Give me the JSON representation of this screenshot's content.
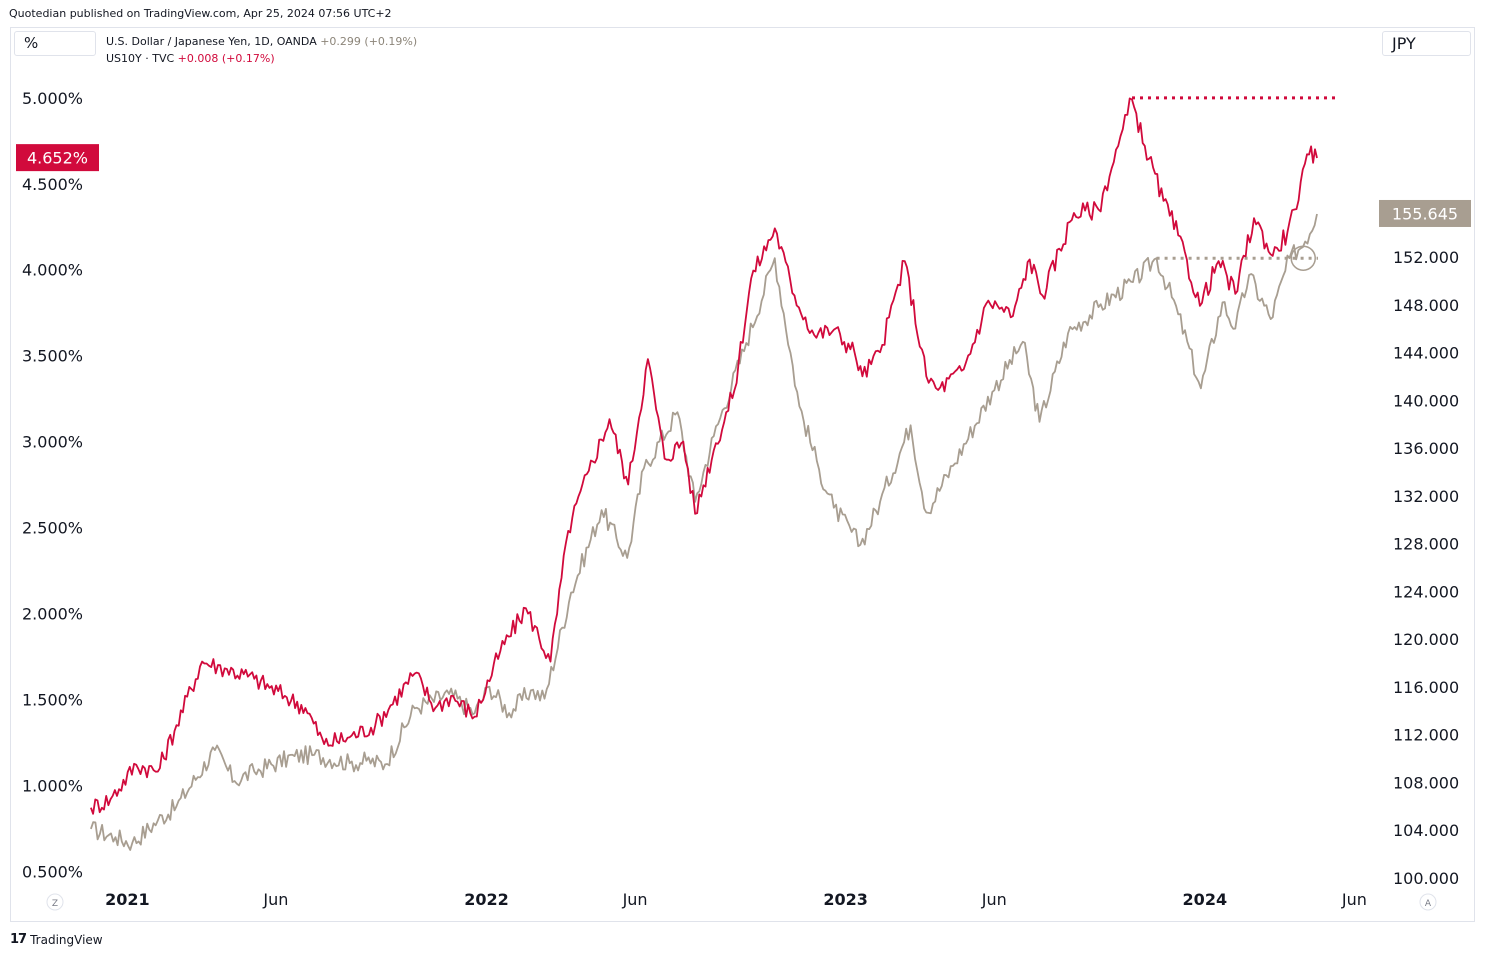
{
  "header": {
    "published_text": "Quotedian published on TradingView.com, Apr 25, 2024 07:56 UTC+2"
  },
  "left_unit_label": "%",
  "right_currency_label": "JPY",
  "legend": [
    {
      "name": "U.S. Dollar / Japanese Yen, 1D, OANDA",
      "change": "+0.299 (+0.19%)",
      "color": "#a89e91"
    },
    {
      "name": "US10Y · TVC",
      "change": "+0.008 (+0.17%)",
      "color": "#d10a3c"
    }
  ],
  "footer": {
    "brand_glyph": "17",
    "brand_text": "TradingView"
  },
  "corner_buttons": {
    "left": "Z",
    "right": "A"
  },
  "chart_data": {
    "type": "line",
    "left_axis": {
      "ylim": [
        0.42,
        5.22
      ],
      "ticks": [
        0.5,
        1.0,
        1.5,
        2.0,
        2.5,
        3.0,
        3.5,
        4.0,
        4.5,
        5.0
      ],
      "tick_labels": [
        "0.500%",
        "1.000%",
        "1.500%",
        "2.000%",
        "2.500%",
        "3.000%",
        "3.500%",
        "4.000%",
        "4.500%",
        "5.000%"
      ]
    },
    "right_axis": {
      "ylim": [
        99.4,
        168.5
      ],
      "ticks": [
        100,
        104,
        108,
        112,
        116,
        120,
        124,
        128,
        132,
        136,
        140,
        144,
        148,
        152
      ],
      "tick_labels": [
        "100.000",
        "104.000",
        "108.000",
        "112.000",
        "116.000",
        "120.000",
        "124.000",
        "128.000",
        "132.000",
        "136.000",
        "140.000",
        "144.000",
        "148.000",
        "152.000"
      ]
    },
    "x_axis": {
      "range": [
        "2020-11-20",
        "2024-06-25"
      ],
      "ticks": [
        {
          "date": "2021-01-01",
          "label": "2021",
          "bold": true
        },
        {
          "date": "2021-06-01",
          "label": "Jun",
          "bold": false
        },
        {
          "date": "2022-01-01",
          "label": "2022",
          "bold": true
        },
        {
          "date": "2022-06-01",
          "label": "Jun",
          "bold": false
        },
        {
          "date": "2023-01-01",
          "label": "2023",
          "bold": true
        },
        {
          "date": "2023-06-01",
          "label": "Jun",
          "bold": false
        },
        {
          "date": "2024-01-01",
          "label": "2024",
          "bold": true
        },
        {
          "date": "2024-06-01",
          "label": "Jun",
          "bold": false
        }
      ]
    },
    "series": [
      {
        "name": "US10Y · TVC",
        "axis": "left",
        "color": "#d10a3c",
        "last_value": 4.652,
        "last_label": "4.652%",
        "points": [
          [
            "2020-11-25",
            0.87
          ],
          [
            "2020-12-15",
            0.92
          ],
          [
            "2021-01-10",
            1.12
          ],
          [
            "2021-02-01",
            1.08
          ],
          [
            "2021-02-20",
            1.35
          ],
          [
            "2021-03-18",
            1.72
          ],
          [
            "2021-04-10",
            1.68
          ],
          [
            "2021-05-10",
            1.62
          ],
          [
            "2021-06-10",
            1.52
          ],
          [
            "2021-07-01",
            1.45
          ],
          [
            "2021-07-20",
            1.24
          ],
          [
            "2021-08-15",
            1.28
          ],
          [
            "2021-09-10",
            1.35
          ],
          [
            "2021-10-20",
            1.65
          ],
          [
            "2021-11-10",
            1.45
          ],
          [
            "2021-11-26",
            1.52
          ],
          [
            "2021-12-20",
            1.4
          ],
          [
            "2022-01-15",
            1.78
          ],
          [
            "2022-02-10",
            2.03
          ],
          [
            "2022-03-07",
            1.72
          ],
          [
            "2022-03-25",
            2.48
          ],
          [
            "2022-04-15",
            2.83
          ],
          [
            "2022-05-06",
            3.13
          ],
          [
            "2022-05-25",
            2.75
          ],
          [
            "2022-06-14",
            3.48
          ],
          [
            "2022-07-01",
            2.9
          ],
          [
            "2022-07-20",
            3.0
          ],
          [
            "2022-08-01",
            2.58
          ],
          [
            "2022-08-20",
            2.95
          ],
          [
            "2022-09-10",
            3.3
          ],
          [
            "2022-09-27",
            3.95
          ],
          [
            "2022-10-21",
            4.24
          ],
          [
            "2022-11-10",
            3.85
          ],
          [
            "2022-11-30",
            3.62
          ],
          [
            "2022-12-20",
            3.65
          ],
          [
            "2023-01-10",
            3.52
          ],
          [
            "2023-01-18",
            3.38
          ],
          [
            "2023-02-05",
            3.52
          ],
          [
            "2023-03-02",
            4.05
          ],
          [
            "2023-03-24",
            3.38
          ],
          [
            "2023-04-05",
            3.3
          ],
          [
            "2023-05-01",
            3.42
          ],
          [
            "2023-05-26",
            3.82
          ],
          [
            "2023-06-20",
            3.73
          ],
          [
            "2023-07-07",
            4.06
          ],
          [
            "2023-07-20",
            3.85
          ],
          [
            "2023-08-21",
            4.33
          ],
          [
            "2023-09-15",
            4.35
          ],
          [
            "2023-10-05",
            4.72
          ],
          [
            "2023-10-19",
            4.99
          ],
          [
            "2023-11-01",
            4.72
          ],
          [
            "2023-11-20",
            4.4
          ],
          [
            "2023-12-05",
            4.2
          ],
          [
            "2023-12-27",
            3.79
          ],
          [
            "2024-01-15",
            4.05
          ],
          [
            "2024-02-01",
            3.86
          ],
          [
            "2024-02-20",
            4.3
          ],
          [
            "2024-03-10",
            4.08
          ],
          [
            "2024-03-25",
            4.22
          ],
          [
            "2024-04-01",
            4.35
          ],
          [
            "2024-04-16",
            4.67
          ],
          [
            "2024-04-24",
            4.65
          ]
        ]
      },
      {
        "name": "U.S. Dollar / Japanese Yen, 1D, OANDA",
        "axis": "right",
        "color": "#a89e91",
        "last_value": 155.645,
        "last_label": "155.645",
        "points": [
          [
            "2020-11-25",
            104.1
          ],
          [
            "2020-12-20",
            103.4
          ],
          [
            "2021-01-06",
            102.9
          ],
          [
            "2021-02-01",
            104.8
          ],
          [
            "2021-02-20",
            106.0
          ],
          [
            "2021-03-31",
            110.7
          ],
          [
            "2021-04-20",
            108.1
          ],
          [
            "2021-05-10",
            108.9
          ],
          [
            "2021-06-20",
            110.2
          ],
          [
            "2021-07-10",
            110.3
          ],
          [
            "2021-08-15",
            109.6
          ],
          [
            "2021-09-01",
            109.8
          ],
          [
            "2021-09-20",
            109.5
          ],
          [
            "2021-10-20",
            114.2
          ],
          [
            "2021-11-24",
            115.4
          ],
          [
            "2021-12-20",
            113.8
          ],
          [
            "2022-01-04",
            116.0
          ],
          [
            "2022-01-24",
            113.8
          ],
          [
            "2022-02-15",
            115.7
          ],
          [
            "2022-03-01",
            115.0
          ],
          [
            "2022-03-28",
            123.9
          ],
          [
            "2022-04-28",
            130.8
          ],
          [
            "2022-05-24",
            126.8
          ],
          [
            "2022-06-10",
            134.3
          ],
          [
            "2022-07-14",
            139.0
          ],
          [
            "2022-08-01",
            131.5
          ],
          [
            "2022-08-20",
            137.0
          ],
          [
            "2022-09-22",
            144.8
          ],
          [
            "2022-10-21",
            151.9
          ],
          [
            "2022-11-15",
            139.5
          ],
          [
            "2022-12-05",
            134.2
          ],
          [
            "2022-12-20",
            131.0
          ],
          [
            "2023-01-16",
            127.9
          ],
          [
            "2023-02-05",
            131.5
          ],
          [
            "2023-03-08",
            137.9
          ],
          [
            "2023-03-24",
            130.6
          ],
          [
            "2023-04-20",
            134.5
          ],
          [
            "2023-05-30",
            140.7
          ],
          [
            "2023-06-30",
            144.9
          ],
          [
            "2023-07-17",
            138.2
          ],
          [
            "2023-08-15",
            145.6
          ],
          [
            "2023-09-15",
            147.8
          ],
          [
            "2023-10-20",
            149.9
          ],
          [
            "2023-11-13",
            151.9
          ],
          [
            "2023-12-05",
            147.2
          ],
          [
            "2023-12-28",
            141.0
          ],
          [
            "2024-01-19",
            148.2
          ],
          [
            "2024-02-01",
            146.0
          ],
          [
            "2024-02-15",
            150.5
          ],
          [
            "2024-03-08",
            146.8
          ],
          [
            "2024-03-27",
            151.9
          ],
          [
            "2024-04-12",
            153.3
          ],
          [
            "2024-04-24",
            155.6
          ]
        ]
      }
    ],
    "annotations": [
      {
        "type": "dotted-hline",
        "axis": "left",
        "value": 5.0,
        "from": "2023-10-19",
        "to": "2024-05-15",
        "color": "#d10a3c"
      },
      {
        "type": "dotted-hline",
        "axis": "right",
        "value": 151.9,
        "from": "2023-11-13",
        "to": "2024-04-25",
        "color": "#a89e91"
      },
      {
        "type": "circle",
        "axis": "right",
        "date": "2024-04-10",
        "value": 151.9,
        "color": "#a89e91"
      }
    ]
  }
}
